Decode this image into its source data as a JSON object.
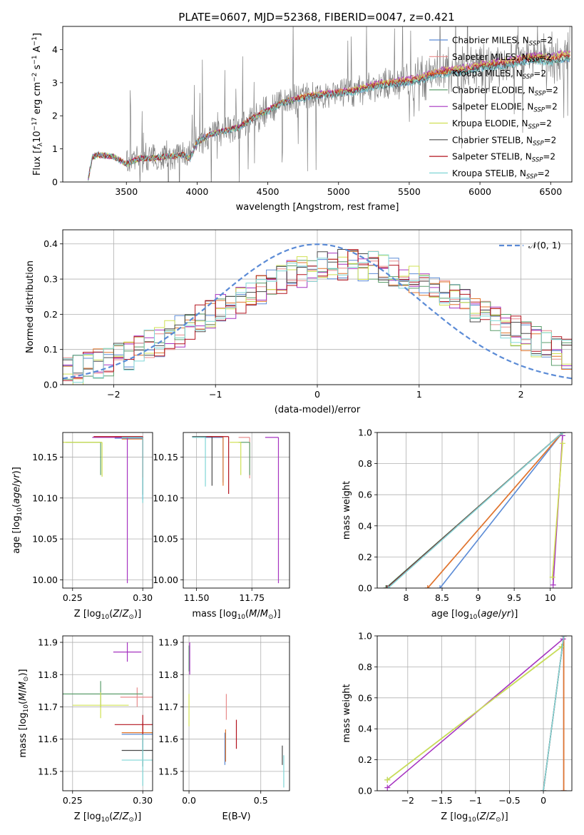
{
  "figure": {
    "title": "PLATE=0607, MJD=52368, FIBERID=0047, z=0.421"
  },
  "colors": {
    "chabrier_miles": "#5b8bd6",
    "salpeter_miles": "#e88b8b",
    "kroupa_miles": "#e0762c",
    "chabrier_elodie": "#5b9e6b",
    "salpeter_elodie": "#a633c0",
    "kroupa_elodie": "#cfe053",
    "chabrier_stelib": "#4a4a4a",
    "salpeter_stelib": "#b3131e",
    "kroupa_stelib": "#7fd6d6",
    "data": "#808080",
    "normal": "#5b8bd6"
  },
  "chart_data": [
    {
      "id": "spectrum",
      "type": "line",
      "xlabel": "wavelength [Angstrom, rest frame]",
      "ylabel": "Flux [f_λ 10^-17 erg cm^-2 s^-1 A^-1]",
      "xlim": [
        3050,
        6650
      ],
      "ylim": [
        0,
        4.7
      ],
      "xticks": [
        3500,
        4000,
        4500,
        5000,
        5500,
        6000,
        6500
      ],
      "yticks": [
        0,
        1,
        2,
        3,
        4
      ],
      "legend_position": "right",
      "legend": [
        {
          "name": "Chabrier MILES",
          "sub": "SSP",
          "suffix": "=2",
          "color": "#5b8bd6"
        },
        {
          "name": "Salpeter MILES",
          "sub": "SSP",
          "suffix": "=2",
          "color": "#e88b8b"
        },
        {
          "name": "Kroupa MILES",
          "sub": "SSP",
          "suffix": "=2",
          "color": "#e0762c"
        },
        {
          "name": "Chabrier ELODIE",
          "sub": "SSP",
          "suffix": "=2",
          "color": "#5b9e6b"
        },
        {
          "name": "Salpeter ELODIE",
          "sub": "SSP",
          "suffix": "=2",
          "color": "#a633c0"
        },
        {
          "name": "Kroupa ELODIE",
          "sub": "SSP",
          "suffix": "=2",
          "color": "#cfe053"
        },
        {
          "name": "Chabrier STELIB",
          "sub": "SSP",
          "suffix": "=2",
          "color": "#4a4a4a"
        },
        {
          "name": "Salpeter STELIB",
          "sub": "SSP",
          "suffix": "=2",
          "color": "#b3131e"
        },
        {
          "name": "Kroupa STELIB",
          "sub": "SSP",
          "suffix": "=2",
          "color": "#7fd6d6"
        }
      ],
      "model_continuum": {
        "x": [
          3230,
          3260,
          3300,
          3400,
          3500,
          3600,
          3700,
          3800,
          3900,
          3950,
          4000,
          4100,
          4200,
          4300,
          4400,
          4500,
          4600,
          4700,
          4800,
          4900,
          5000,
          5100,
          5200,
          5300,
          5400,
          5500,
          5600,
          5700,
          5800,
          5900,
          6000,
          6100,
          6200,
          6300,
          6400,
          6500,
          6600
        ],
        "y": [
          0.1,
          0.75,
          0.82,
          0.78,
          0.55,
          0.72,
          0.72,
          0.78,
          0.82,
          0.7,
          1.2,
          1.45,
          1.55,
          1.65,
          1.95,
          2.15,
          2.4,
          2.5,
          2.6,
          2.65,
          2.7,
          2.75,
          2.85,
          2.95,
          3.0,
          3.05,
          3.15,
          3.3,
          3.35,
          3.4,
          3.5,
          3.55,
          3.6,
          3.7,
          3.75,
          3.7,
          3.8
        ]
      },
      "model_offsets": [
        -0.08,
        0.1,
        0.05,
        -0.05,
        0.12,
        0.08,
        -0.1,
        0.0,
        -0.12
      ],
      "data_region": [
        3500,
        6600
      ]
    },
    {
      "id": "residuals",
      "type": "line",
      "xlabel": "(data-model)/error",
      "ylabel": "Normed distribution",
      "xlim": [
        -2.5,
        2.5
      ],
      "ylim": [
        0,
        0.44
      ],
      "xticks": [
        -2,
        -1,
        0,
        1,
        2
      ],
      "yticks": [
        0.0,
        0.1,
        0.2,
        0.3,
        0.4
      ],
      "grid": true,
      "legend_position": "top-right",
      "normal_label": "𝒩(0, 1)",
      "bin_width": 0.1
    },
    {
      "id": "age_vs_Z",
      "type": "scatter",
      "xlabel": "Z [log10(Z/Z⊙)]",
      "ylabel": "age  [log10(age/yr)]",
      "xlim": [
        0.243,
        0.307
      ],
      "ylim": [
        9.99,
        10.18
      ],
      "xticks": [
        0.25,
        0.3
      ],
      "xtick_labels": [
        "0.25",
        "0.30"
      ],
      "yticks": [
        10.0,
        10.05,
        10.1,
        10.15
      ],
      "grid": true,
      "points": [
        {
          "model": "chabrier_miles",
          "x": 0.3,
          "y": 10.173,
          "xerr": 0.02,
          "yerr_lo": 0.075
        },
        {
          "model": "salpeter_miles",
          "x": 0.3,
          "y": 10.175,
          "xerr": 0.02,
          "yerr_lo": 0.05
        },
        {
          "model": "kroupa_miles",
          "x": 0.3,
          "y": 10.172,
          "xerr": 0.015,
          "yerr_lo": 0.04
        },
        {
          "model": "chabrier_elodie",
          "x": 0.27,
          "y": 10.168,
          "xerr": 0.025,
          "yerr_lo": 0.04
        },
        {
          "model": "salpeter_elodie",
          "x": 0.289,
          "y": 10.174,
          "xerr": 0.025,
          "yerr_lo": 0.178
        },
        {
          "model": "kroupa_elodie",
          "x": 0.271,
          "y": 10.168,
          "xerr": 0.03,
          "yerr_lo": 0.042
        },
        {
          "model": "chabrier_stelib",
          "x": 0.3,
          "y": 10.174,
          "xerr": 0.015,
          "yerr_lo": 0.07
        },
        {
          "model": "salpeter_stelib",
          "x": 0.3,
          "y": 10.175,
          "xerr": 0.035,
          "yerr_lo": 0.05
        },
        {
          "model": "kroupa_stelib",
          "x": 0.3,
          "y": 10.174,
          "xerr": 0.015,
          "yerr_lo": 0.08
        }
      ]
    },
    {
      "id": "age_vs_mass",
      "type": "scatter",
      "xlabel": "mass [log10(M/M⊙)]",
      "ylabel": "",
      "xlim": [
        11.44,
        11.92
      ],
      "ylim": [
        9.99,
        10.18
      ],
      "xticks": [
        11.5,
        11.75
      ],
      "xtick_labels": [
        "11.50",
        "11.75"
      ],
      "yticks": [
        10.0,
        10.05,
        10.1,
        10.15
      ],
      "grid": true,
      "points": [
        {
          "model": "chabrier_miles",
          "x": 11.62,
          "y": 10.174,
          "xerr": 0.1,
          "yerr_lo": 0.055
        },
        {
          "model": "salpeter_miles",
          "x": 11.74,
          "y": 10.174,
          "xerr": 0.05,
          "yerr_lo": 0.05
        },
        {
          "model": "kroupa_miles",
          "x": 11.62,
          "y": 10.175,
          "xerr": 0.06,
          "yerr_lo": 0.06
        },
        {
          "model": "chabrier_elodie",
          "x": 11.74,
          "y": 10.168,
          "xerr": 0.05,
          "yerr_lo": 0.04
        },
        {
          "model": "salpeter_elodie",
          "x": 11.87,
          "y": 10.174,
          "xerr": 0.06,
          "yerr_lo": 0.178
        },
        {
          "model": "kroupa_elodie",
          "x": 11.7,
          "y": 10.168,
          "xerr": 0.05,
          "yerr_lo": 0.04
        },
        {
          "model": "chabrier_stelib",
          "x": 11.57,
          "y": 10.175,
          "xerr": 0.09,
          "yerr_lo": 0.06
        },
        {
          "model": "salpeter_stelib",
          "x": 11.645,
          "y": 10.175,
          "xerr": 0.1,
          "yerr_lo": 0.07
        },
        {
          "model": "kroupa_stelib",
          "x": 11.54,
          "y": 10.174,
          "xerr": 0.06,
          "yerr_lo": 0.06
        }
      ]
    },
    {
      "id": "weight_vs_age",
      "type": "line",
      "xlabel": "age  [log10(age/yr)]",
      "ylabel": "mass weight",
      "xlim": [
        7.6,
        10.3
      ],
      "ylim": [
        0,
        1.0
      ],
      "xticks": [
        8.0,
        8.5,
        9.0,
        9.5,
        10.0
      ],
      "yticks": [
        0.0,
        0.2,
        0.4,
        0.6,
        0.8,
        1.0
      ],
      "grid": true,
      "series": [
        {
          "model": "chabrier_miles",
          "x": [
            8.47,
            10.17
          ],
          "y": [
            0.0,
            1.0
          ]
        },
        {
          "model": "salpeter_miles",
          "x": [
            8.3,
            10.17
          ],
          "y": [
            0.0,
            1.0
          ]
        },
        {
          "model": "kroupa_miles",
          "x": [
            8.3,
            10.17
          ],
          "y": [
            0.0,
            1.0
          ]
        },
        {
          "model": "chabrier_elodie",
          "x": [
            7.72,
            10.17
          ],
          "y": [
            0.0,
            1.0
          ]
        },
        {
          "model": "salpeter_elodie",
          "x": [
            10.04,
            10.17
          ],
          "y": [
            0.02,
            0.98
          ]
        },
        {
          "model": "kroupa_elodie",
          "x": [
            10.03,
            10.17
          ],
          "y": [
            0.07,
            0.93
          ]
        },
        {
          "model": "chabrier_stelib",
          "x": [
            7.73,
            10.17
          ],
          "y": [
            0.0,
            1.0
          ]
        },
        {
          "model": "salpeter_stelib",
          "x": [
            7.74,
            10.17
          ],
          "y": [
            0.0,
            1.0
          ]
        },
        {
          "model": "kroupa_stelib",
          "x": [
            7.75,
            10.17
          ],
          "y": [
            0.0,
            1.0
          ]
        }
      ]
    },
    {
      "id": "mass_vs_Z",
      "type": "scatter",
      "xlabel": "Z [log10(Z/Z⊙)]",
      "ylabel": "mass [log10(M/M⊙)]",
      "xlim": [
        0.243,
        0.307
      ],
      "ylim": [
        11.44,
        11.92
      ],
      "xticks": [
        0.25,
        0.3
      ],
      "xtick_labels": [
        "0.25",
        "0.30"
      ],
      "yticks": [
        11.5,
        11.6,
        11.7,
        11.8,
        11.9
      ],
      "grid": true,
      "points": [
        {
          "model": "chabrier_miles",
          "x": 0.3,
          "y": 11.615,
          "xerr": 0.015,
          "yerr": 0.04
        },
        {
          "model": "salpeter_miles",
          "x": 0.296,
          "y": 11.73,
          "xerr": 0.012,
          "yerr": 0.03
        },
        {
          "model": "kroupa_miles",
          "x": 0.3,
          "y": 11.62,
          "xerr": 0.015,
          "yerr": 0.03
        },
        {
          "model": "chabrier_elodie",
          "x": 0.27,
          "y": 11.74,
          "xerr": 0.03,
          "yerr": 0.04
        },
        {
          "model": "salpeter_elodie",
          "x": 0.289,
          "y": 11.87,
          "xerr": 0.01,
          "yerr": 0.03
        },
        {
          "model": "kroupa_elodie",
          "x": 0.27,
          "y": 11.705,
          "xerr": 0.02,
          "yerr": 0.04
        },
        {
          "model": "chabrier_stelib",
          "x": 0.3,
          "y": 11.565,
          "xerr": 0.015,
          "yerr": 0.05
        },
        {
          "model": "salpeter_stelib",
          "x": 0.3,
          "y": 11.645,
          "xerr": 0.02,
          "yerr": 0.03
        },
        {
          "model": "kroupa_stelib",
          "x": 0.3,
          "y": 11.535,
          "xerr": 0.015,
          "yerr": 0.08
        }
      ]
    },
    {
      "id": "mass_vs_ebv",
      "type": "scatter",
      "xlabel": "E(B-V)",
      "ylabel": "",
      "xlim": [
        -0.04,
        0.7
      ],
      "ylim": [
        11.44,
        11.92
      ],
      "xticks": [
        0.0,
        0.5
      ],
      "xtick_labels": [
        "0.0",
        "0.5"
      ],
      "yticks": [
        11.5,
        11.6,
        11.7,
        11.8,
        11.9
      ],
      "grid": true,
      "points": [
        {
          "model": "chabrier_miles",
          "x": 0.25,
          "y": 11.57,
          "yerr": 0.05
        },
        {
          "model": "salpeter_miles",
          "x": 0.26,
          "y": 11.7,
          "yerr": 0.04
        },
        {
          "model": "kroupa_miles",
          "x": 0.255,
          "y": 11.58,
          "yerr": 0.05
        },
        {
          "model": "chabrier_elodie",
          "x": 0.0,
          "y": 11.85,
          "yerr": 0.04
        },
        {
          "model": "salpeter_elodie",
          "x": 0.005,
          "y": 11.85,
          "yerr": 0.05
        },
        {
          "model": "kroupa_elodie",
          "x": 0.0,
          "y": 11.69,
          "yerr": 0.05
        },
        {
          "model": "chabrier_stelib",
          "x": 0.65,
          "y": 11.55,
          "yerr": 0.03
        },
        {
          "model": "salpeter_stelib",
          "x": 0.33,
          "y": 11.615,
          "yerr": 0.045
        },
        {
          "model": "kroupa_stelib",
          "x": 0.66,
          "y": 11.5,
          "yerr": 0.05
        }
      ]
    },
    {
      "id": "weight_vs_Z",
      "type": "line",
      "xlabel": "Z [log10(Z/Z⊙)]",
      "ylabel": "mass weight",
      "xlim": [
        -2.45,
        0.42
      ],
      "ylim": [
        0,
        1.0
      ],
      "xticks": [
        -2.0,
        -1.5,
        -1.0,
        -0.5,
        0.0
      ],
      "yticks": [
        0.0,
        0.2,
        0.4,
        0.6,
        0.8,
        1.0
      ],
      "grid": true,
      "series": [
        {
          "model": "chabrier_miles",
          "x": [
            0.3,
            0.3
          ],
          "y": [
            0.0,
            1.0
          ]
        },
        {
          "model": "salpeter_miles",
          "x": [
            0.3,
            0.3
          ],
          "y": [
            0.0,
            1.0
          ]
        },
        {
          "model": "kroupa_miles",
          "x": [
            0.3,
            0.3
          ],
          "y": [
            0.0,
            1.0
          ]
        },
        {
          "model": "chabrier_elodie",
          "x": [
            -2.3,
            0.27
          ],
          "y": [
            0.07,
            0.93
          ]
        },
        {
          "model": "salpeter_elodie",
          "x": [
            -2.3,
            0.29
          ],
          "y": [
            0.02,
            0.98
          ]
        },
        {
          "model": "kroupa_elodie",
          "x": [
            -2.3,
            0.27
          ],
          "y": [
            0.07,
            0.93
          ]
        },
        {
          "model": "chabrier_stelib",
          "x": [
            0.0,
            0.3
          ],
          "y": [
            0.0,
            1.0
          ]
        },
        {
          "model": "salpeter_stelib",
          "x": [
            0.0,
            0.3
          ],
          "y": [
            0.0,
            1.0
          ]
        },
        {
          "model": "kroupa_stelib",
          "x": [
            0.0,
            0.3
          ],
          "y": [
            0.0,
            1.0
          ]
        }
      ]
    }
  ]
}
